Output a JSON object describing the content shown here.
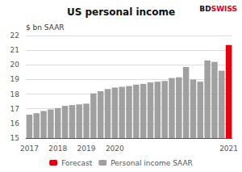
{
  "chart_data": {
    "type": "bar",
    "title": "US personal income",
    "ylabel": "$ bn SAAR",
    "categories": [
      "2017",
      null,
      null,
      null,
      "2018",
      null,
      null,
      null,
      "2019",
      null,
      null,
      null,
      "2020",
      null,
      null,
      null,
      null,
      null,
      null,
      null,
      null,
      null,
      null,
      null,
      null,
      null,
      null,
      null,
      "2021"
    ],
    "series": [
      {
        "name": "Forecast",
        "color": "#e8000d",
        "values": [
          null,
          null,
          null,
          null,
          null,
          null,
          null,
          null,
          null,
          null,
          null,
          null,
          null,
          null,
          null,
          null,
          null,
          null,
          null,
          null,
          null,
          null,
          null,
          null,
          null,
          null,
          null,
          null,
          21.35
        ]
      },
      {
        "name": "Personal income SAAR",
        "color": "#a0a0a0",
        "values": [
          16.6,
          16.7,
          16.85,
          16.95,
          17.05,
          17.2,
          17.25,
          17.3,
          17.35,
          18.05,
          18.2,
          18.35,
          18.45,
          18.5,
          18.55,
          18.65,
          18.7,
          18.8,
          18.85,
          18.9,
          19.1,
          19.15,
          19.85,
          19.0,
          18.85,
          20.3,
          20.2,
          19.6,
          null
        ]
      }
    ],
    "ylim": [
      15,
      22
    ],
    "yticks": [
      15,
      16,
      17,
      18,
      19,
      20,
      21,
      22
    ],
    "grid": true,
    "legend": "bottom",
    "annotations": [
      {
        "text": "BD",
        "color": "#111111"
      },
      {
        "text": "SWISS",
        "color": "#e8000d"
      }
    ]
  }
}
